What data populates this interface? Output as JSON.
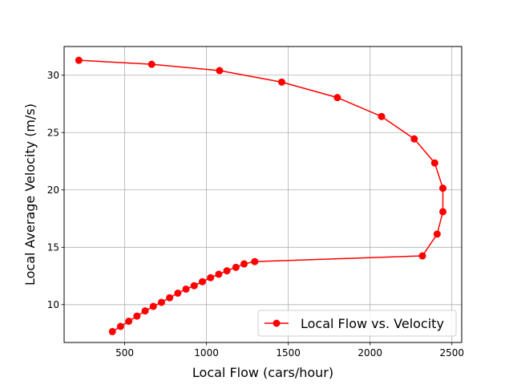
{
  "chart_data": {
    "type": "line",
    "xlabel": "Local Flow (cars/hour)",
    "ylabel": "Local Average Velocity (m/s)",
    "xlim": [
      130,
      2560
    ],
    "ylim": [
      6.7,
      32.5
    ],
    "xticks": [
      500,
      1000,
      1500,
      2000,
      2500
    ],
    "yticks": [
      10,
      15,
      20,
      25,
      30
    ],
    "grid": true,
    "legend_position": "lower-right",
    "color": "#ff0000",
    "series": [
      {
        "name": "Local Flow vs. Velocity",
        "marker": "circle",
        "points": [
          {
            "x": 220,
            "y": 31.3
          },
          {
            "x": 665,
            "y": 30.95
          },
          {
            "x": 1080,
            "y": 30.4
          },
          {
            "x": 1460,
            "y": 29.4
          },
          {
            "x": 1800,
            "y": 28.05
          },
          {
            "x": 2070,
            "y": 26.4
          },
          {
            "x": 2270,
            "y": 24.45
          },
          {
            "x": 2395,
            "y": 22.35
          },
          {
            "x": 2445,
            "y": 20.15
          },
          {
            "x": 2445,
            "y": 18.1
          },
          {
            "x": 2410,
            "y": 16.15
          },
          {
            "x": 2320,
            "y": 14.25
          },
          {
            "x": 1295,
            "y": 13.75
          },
          {
            "x": 1230,
            "y": 13.55
          },
          {
            "x": 1180,
            "y": 13.25
          },
          {
            "x": 1125,
            "y": 12.95
          },
          {
            "x": 1075,
            "y": 12.65
          },
          {
            "x": 1025,
            "y": 12.35
          },
          {
            "x": 975,
            "y": 12.0
          },
          {
            "x": 925,
            "y": 11.65
          },
          {
            "x": 875,
            "y": 11.35
          },
          {
            "x": 825,
            "y": 11.0
          },
          {
            "x": 775,
            "y": 10.6
          },
          {
            "x": 725,
            "y": 10.2
          },
          {
            "x": 675,
            "y": 9.85
          },
          {
            "x": 625,
            "y": 9.45
          },
          {
            "x": 575,
            "y": 9.0
          },
          {
            "x": 525,
            "y": 8.55
          },
          {
            "x": 475,
            "y": 8.1
          },
          {
            "x": 425,
            "y": 7.65
          }
        ]
      }
    ]
  }
}
